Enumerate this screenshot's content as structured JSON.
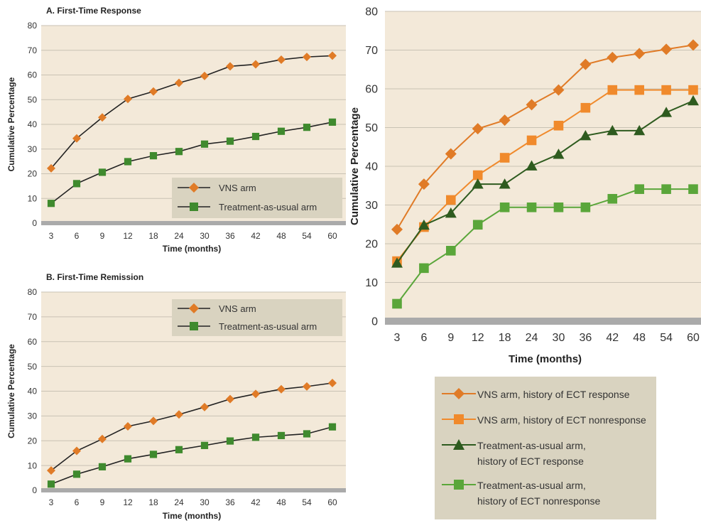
{
  "chart_data": [
    {
      "id": "A",
      "type": "line",
      "title": "A. First-Time Response",
      "xlabel": "Time (months)",
      "ylabel": "Cumulative Percentage",
      "categories": [
        "3",
        "6",
        "9",
        "12",
        "18",
        "24",
        "30",
        "36",
        "42",
        "48",
        "54",
        "60"
      ],
      "ylim": [
        0,
        80
      ],
      "yticks": [
        0,
        10,
        20,
        30,
        40,
        50,
        60,
        70,
        80
      ],
      "grid": true,
      "legend_position": "bottom-right",
      "series": [
        {
          "name": "VNS arm",
          "color": "#e07b27",
          "marker": "diamond",
          "values": [
            22.2,
            34.3,
            42.8,
            50.3,
            53.3,
            56.8,
            59.6,
            63.5,
            64.3,
            66.2,
            67.3,
            67.8
          ]
        },
        {
          "name": "Treatment-as-usual arm",
          "color": "#3f8a2e",
          "marker": "square",
          "values": [
            8,
            16,
            20.6,
            24.9,
            27.3,
            29,
            32,
            33.2,
            35.1,
            37.2,
            38.8,
            40.9
          ]
        }
      ]
    },
    {
      "id": "B",
      "type": "line",
      "title": "B. First-Time Remission",
      "xlabel": "Time (months)",
      "ylabel": "Cumulative Percentage",
      "categories": [
        "3",
        "6",
        "9",
        "12",
        "18",
        "24",
        "30",
        "36",
        "42",
        "48",
        "54",
        "60"
      ],
      "ylim": [
        0,
        80
      ],
      "yticks": [
        0,
        10,
        20,
        30,
        40,
        50,
        60,
        70,
        80
      ],
      "grid": true,
      "legend_position": "top-right",
      "series": [
        {
          "name": "VNS arm",
          "color": "#e07b27",
          "marker": "diamond",
          "values": [
            8,
            15.9,
            20.7,
            25.8,
            28,
            30.6,
            33.6,
            36.8,
            38.9,
            40.8,
            41.9,
            43.3
          ]
        },
        {
          "name": "Treatment-as-usual arm",
          "color": "#3f8a2e",
          "marker": "square",
          "values": [
            2.5,
            6.5,
            9.5,
            12.7,
            14.5,
            16.4,
            18.1,
            19.9,
            21.4,
            22.1,
            22.8,
            25.6
          ]
        }
      ]
    },
    {
      "id": "C",
      "type": "line",
      "title": "",
      "xlabel": "Time (months)",
      "ylabel": "Cumulative Percentage",
      "categories": [
        "3",
        "6",
        "9",
        "12",
        "18",
        "24",
        "30",
        "36",
        "42",
        "48",
        "54",
        "60"
      ],
      "ylim": [
        0,
        80
      ],
      "yticks": [
        0,
        10,
        20,
        30,
        40,
        50,
        60,
        70,
        80
      ],
      "grid": true,
      "legend_position": "below",
      "series": [
        {
          "name": "VNS arm, history of ECT response",
          "color": "#e07b27",
          "marker": "diamond",
          "values": [
            23.7,
            35.4,
            43.2,
            49.7,
            51.9,
            55.9,
            59.7,
            66.3,
            68.1,
            69.1,
            70.2,
            71.3
          ]
        },
        {
          "name": "VNS arm, history of ECT nonresponse",
          "color": "#f08a2c",
          "marker": "square",
          "values": [
            15.5,
            24.3,
            31.3,
            37.7,
            42.2,
            46.7,
            50.5,
            55.1,
            59.7,
            59.7,
            59.7,
            59.7
          ]
        },
        {
          "name": "Treatment-as-usual arm, history of ECT response",
          "color": "#2e5b1f",
          "marker": "triangle",
          "values": [
            15,
            24.8,
            27.9,
            35.4,
            35.4,
            40.1,
            43.1,
            47.9,
            49.2,
            49.2,
            53.9,
            56.9
          ]
        },
        {
          "name": "Treatment-as-usual arm, history of ECT nonresponse",
          "color": "#5aa63a",
          "marker": "square",
          "values": [
            4.5,
            13.7,
            18.2,
            24.9,
            29.4,
            29.4,
            29.4,
            29.4,
            31.6,
            34.1,
            34.1,
            34.1
          ]
        }
      ]
    }
  ],
  "legends": {
    "A": [
      "VNS arm",
      "Treatment-as-usual arm"
    ],
    "B": [
      "VNS arm",
      "Treatment-as-usual arm"
    ],
    "C": [
      {
        "line1": "VNS arm, history of ECT response"
      },
      {
        "line1": "VNS arm, history of ECT nonresponse"
      },
      {
        "line1": "Treatment-as-usual arm,",
        "line2": "history of ECT response"
      },
      {
        "line1": "Treatment-as-usual arm,",
        "line2": "history of ECT nonresponse"
      }
    ]
  },
  "colors": {
    "plot_background": "#f3e9d9",
    "gridline": "#c9c2b4",
    "axis_band": "#aaaaaa",
    "legend_background": "#d9d3c0",
    "connector_line": "#222222"
  }
}
